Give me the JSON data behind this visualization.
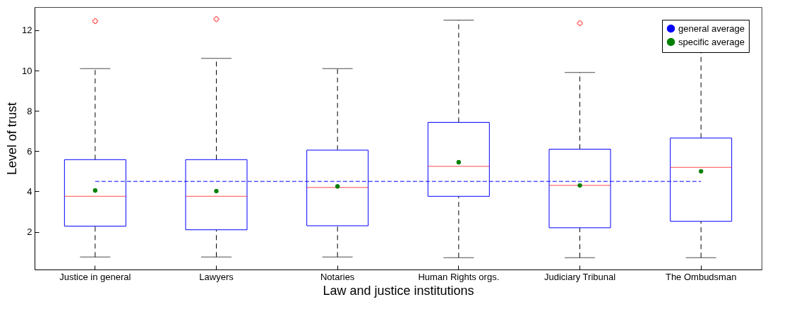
{
  "chart_data": {
    "type": "box",
    "xlabel": "Law and justice institutions",
    "ylabel": "Level of trust",
    "categories": [
      "Justice in general",
      "Lawyers",
      "Notaries",
      "Human Rights orgs.",
      "Judiciary Tribunal",
      "The Ombudsman"
    ],
    "ylim": [
      0.13,
      13.15
    ],
    "yticks": [
      2,
      4,
      6,
      8,
      10,
      12
    ],
    "grid": false,
    "legend": "top right",
    "series": [
      {
        "type": "box",
        "color": "#0000ff",
        "boxes": [
          {
            "low": 0.75,
            "q1": 2.28,
            "median": 3.76,
            "q3": 5.58,
            "high": 10.1,
            "outliers": [
              12.45
            ]
          },
          {
            "low": 0.75,
            "q1": 2.1,
            "median": 3.76,
            "q3": 5.58,
            "high": 10.6,
            "outliers": [
              12.55
            ]
          },
          {
            "low": 0.75,
            "q1": 2.3,
            "median": 4.2,
            "q3": 6.05,
            "high": 10.1
          },
          {
            "low": 0.72,
            "q1": 3.76,
            "median": 5.25,
            "q3": 7.43,
            "high": 12.5
          },
          {
            "low": 0.72,
            "q1": 2.2,
            "median": 4.3,
            "q3": 6.1,
            "high": 9.9,
            "outliers": [
              12.35
            ]
          },
          {
            "low": 0.72,
            "q1": 2.52,
            "median": 5.2,
            "q3": 6.65,
            "high": 12.4
          }
        ]
      },
      {
        "type": "line",
        "name": "general average",
        "color": "#0000ff",
        "line_style": "dashed",
        "x": [
          "Justice in general",
          "The Ombudsman"
        ],
        "values": [
          4.5,
          4.5
        ]
      },
      {
        "type": "scatter",
        "name": "specific average",
        "color": "#008000",
        "marker": "circle",
        "x": [
          "Justice in general",
          "Lawyers",
          "Notaries",
          "Human Rights orgs.",
          "Judiciary Tribunal",
          "The Ombudsman"
        ],
        "values": [
          4.05,
          4.02,
          4.25,
          5.45,
          4.3,
          5.0
        ]
      }
    ]
  }
}
